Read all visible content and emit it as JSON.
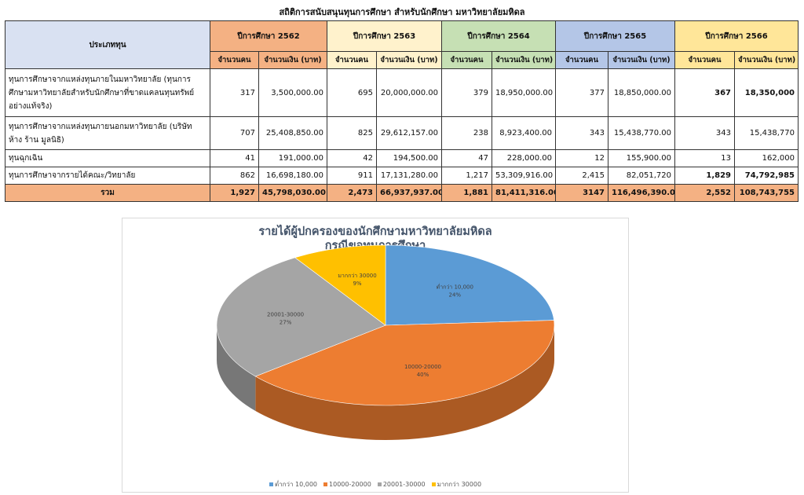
{
  "title": "สถิติการสนับสนุนทุนการศึกษา สำหรับนักศึกษา มหาวิทยาลัยมหิดล",
  "table": {
    "type_header": "ประเภททุน",
    "years": [
      "ปีการศึกษา 2562",
      "ปีการศึกษา 2563",
      "ปีการศึกษา 2564",
      "ปีการศึกษา 2565",
      "ปีการศึกษา 2566"
    ],
    "year_colors": [
      "#f4b183",
      "#fff2cc",
      "#c6e0b4",
      "#b4c6e7",
      "#ffe699"
    ],
    "count_header": "จำนวนคน",
    "amount_header": "จำนวนเงิน (บาท)",
    "rows": [
      {
        "label": "ทุนการศึกษาจากแหล่งทุนภายในมหาวิทยาลัย (ทุนการศึกษามหาวิทยาลัยสำหรับนักศึกษาที่ขาดแคลนทุนทรัพย์อย่างแท้จริง)",
        "values": [
          "317",
          "3,500,000.00",
          "695",
          "20,000,000.00",
          "379",
          "18,950,000.00",
          "377",
          "18,850,000.00",
          "367",
          "18,350,000"
        ]
      },
      {
        "label": "ทุนการศึกษาจากแหล่งทุนภายนอกมหาวิทยาลัย (บริษัท ห้าง ร้าน มูลนิธิ)",
        "values": [
          "707",
          "25,408,850.00",
          "825",
          "29,612,157.00",
          "238",
          "8,923,400.00",
          "343",
          "15,438,770.00",
          "343",
          "15,438,770"
        ]
      },
      {
        "label": "ทุนฉุกเฉิน",
        "values": [
          "41",
          "191,000.00",
          "42",
          "194,500.00",
          "47",
          "228,000.00",
          "12",
          "155,900.00",
          "13",
          "162,000"
        ]
      },
      {
        "label": "ทุนการศึกษาจากรายได้คณะ/วิทยาลัย",
        "values": [
          "862",
          "16,698,180.00",
          "911",
          "17,131,280.00",
          "1,217",
          "53,309,916.00",
          "2,415",
          "82,051,720",
          "1,829",
          "74,792,985"
        ]
      }
    ],
    "total": {
      "label": "รวม",
      "values": [
        "1,927",
        "45,798,030.00",
        "2,473",
        "66,937,937.00",
        "1,881",
        "81,411,316.00",
        "3147",
        "116,496,390.00",
        "2,552",
        "108,743,755"
      ]
    }
  },
  "chart_data": {
    "type": "pie",
    "title_line1": "รายได้ผู้ปกครองของนักศึกษามหาวิทยาลัยมหิดล",
    "title_line2": "กรณีขอทุนการศึกษา",
    "categories": [
      "ต่ำกว่า 10,000",
      "10000-20000",
      "20001-30000",
      "มากกว่า 30000"
    ],
    "values": [
      24,
      40,
      27,
      9
    ],
    "labels": [
      "24%",
      "40%",
      "27%",
      "9%"
    ],
    "colors": [
      "#5b9bd5",
      "#ed7d31",
      "#a5a5a5",
      "#ffc000"
    ],
    "legend_position": "bottom"
  }
}
